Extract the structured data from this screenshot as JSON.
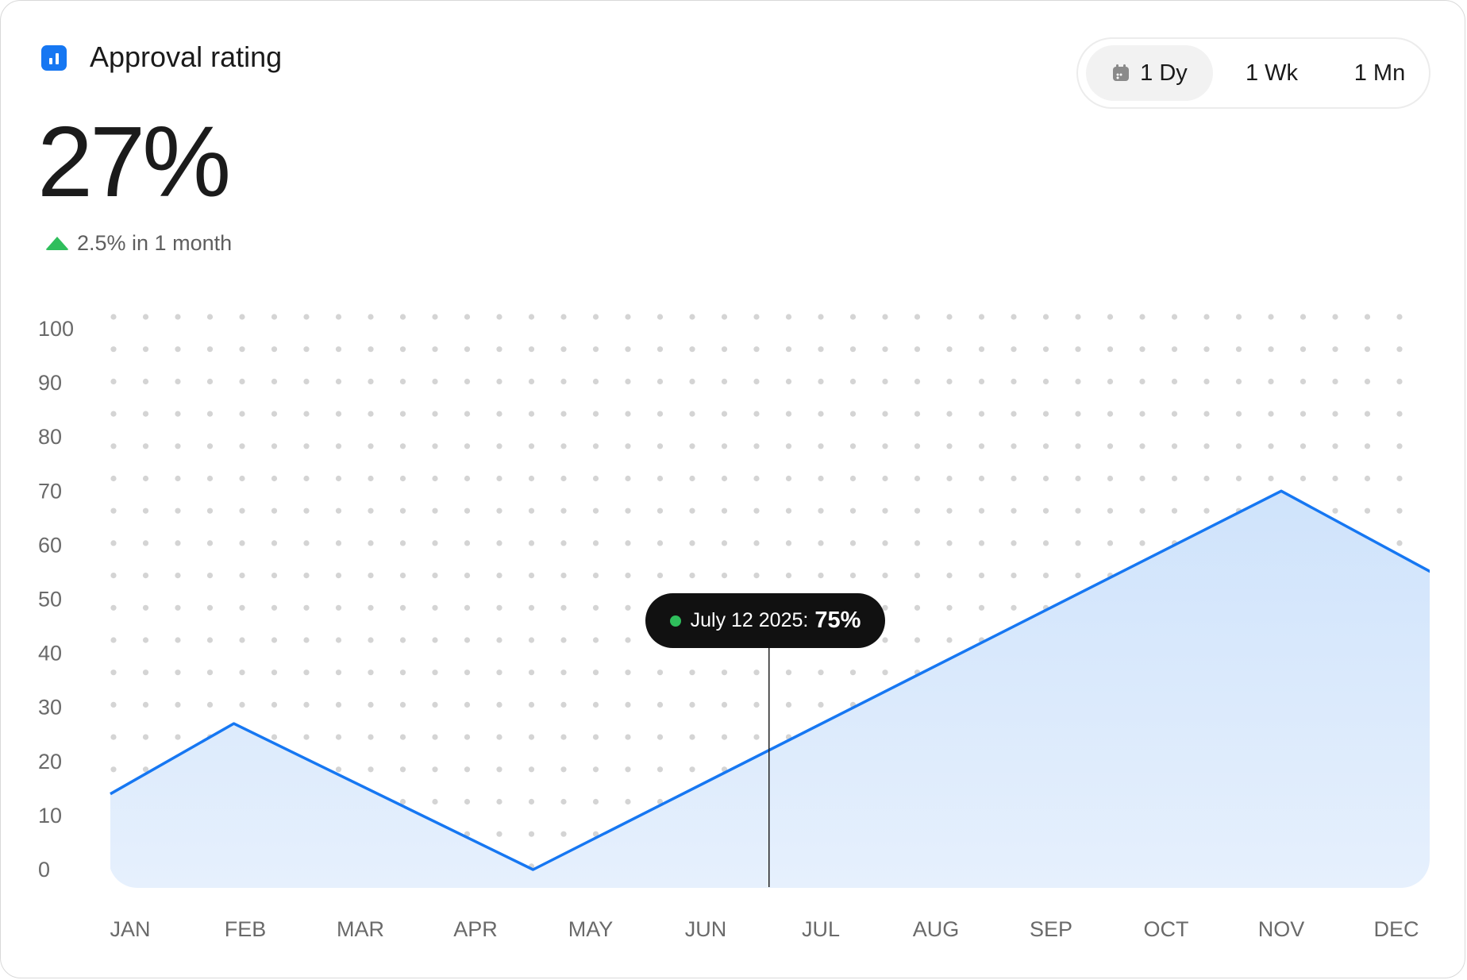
{
  "header": {
    "title": "Approval rating",
    "icon": "bar-chart-icon",
    "value": "27%",
    "delta_text": "2.5% in 1 month",
    "delta_icon": "arrow-up-icon",
    "delta_color": "#2fbe5c"
  },
  "range_selector": {
    "options": [
      {
        "label": "1 Dy",
        "active": true,
        "icon": "calendar-icon"
      },
      {
        "label": "1 Wk",
        "active": false
      },
      {
        "label": "1 Mn",
        "active": false
      }
    ]
  },
  "tooltip": {
    "date": "July 12 2025:",
    "value": "75%"
  },
  "chart_data": {
    "type": "area",
    "categories": [
      "JAN",
      "FEB",
      "MAR",
      "APR",
      "MAY",
      "JUN",
      "JUL",
      "AUG",
      "SEP",
      "OCT",
      "NOV",
      "DEC"
    ],
    "x_points": [
      0,
      0.9,
      3.5,
      10.0,
      11.5
    ],
    "y_points": [
      14,
      27,
      0,
      70,
      55
    ],
    "yticks": [
      0,
      10,
      20,
      30,
      40,
      50,
      60,
      70,
      80,
      90,
      100
    ],
    "ylim": [
      0,
      100
    ],
    "grid": "dotted",
    "line_color": "#1677f2",
    "fill_color": "#dbe9fc",
    "cursor_x": 5.55
  }
}
